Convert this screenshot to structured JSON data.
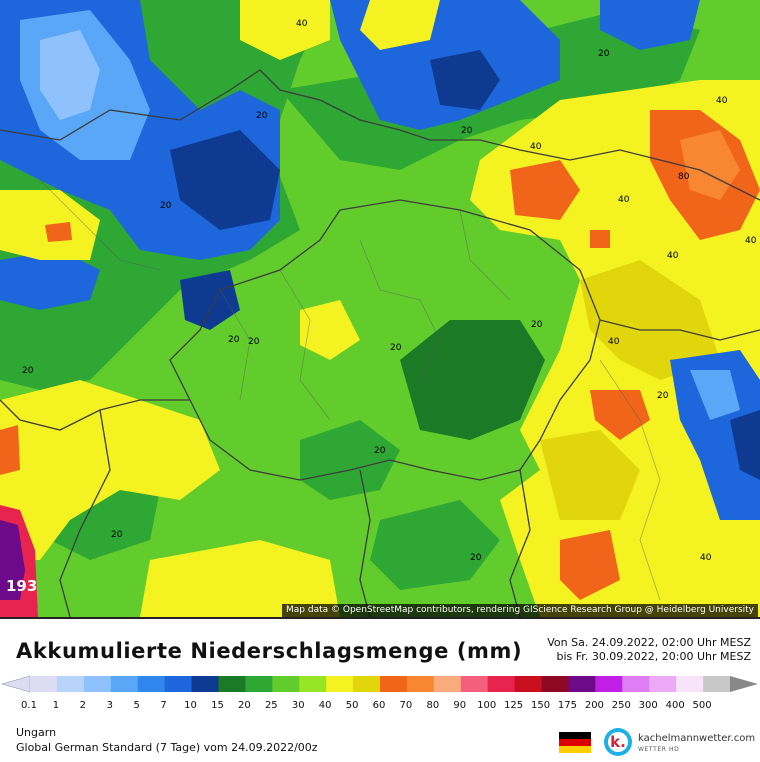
{
  "map": {
    "attribution": "Map data © OpenStreetMap contributors, rendering GIScience Research Group @ Heidelberg University",
    "contour_labels": [
      "40",
      "20",
      "20",
      "40",
      "20",
      "40",
      "20",
      "20",
      "20",
      "40",
      "40",
      "80",
      "40",
      "40",
      "20",
      "20",
      "20",
      "20",
      "20",
      "20",
      "40",
      "20"
    ],
    "max_value_label": "193"
  },
  "header": {
    "title": "Akkumulierte Niederschlagsmenge (mm)",
    "period_from": "Von Sa. 24.09.2022, 02:00 Uhr MESZ",
    "period_to": "bis Fr. 30.09.2022, 20:00 Uhr MESZ"
  },
  "legend": {
    "unit": "mm",
    "values": [
      "0.1",
      "1",
      "2",
      "3",
      "5",
      "7",
      "10",
      "15",
      "20",
      "25",
      "30",
      "40",
      "50",
      "60",
      "70",
      "80",
      "90",
      "100",
      "125",
      "150",
      "175",
      "200",
      "250",
      "300",
      "400",
      "500"
    ],
    "colors": [
      "#dcdcf4",
      "#b9d4fb",
      "#8fc2fc",
      "#5aa7f7",
      "#2f87ee",
      "#1d66dc",
      "#0e3a91",
      "#1c7a27",
      "#2fa734",
      "#63cc2d",
      "#96e626",
      "#f4f221",
      "#e1d50c",
      "#f0651a",
      "#f98732",
      "#fbac7d",
      "#f2607b",
      "#e8244e",
      "#c90e1d",
      "#8e0723",
      "#6c0a8a",
      "#c020e6",
      "#df7ef4",
      "#eca9f8",
      "#f7e4fb",
      "#c8c8c8"
    ]
  },
  "footer": {
    "region": "Ungarn",
    "model": "Global German Standard (7 Tage) vom 24.09.2022/00z",
    "brand": "kachelmannwetter.com",
    "brand_sub": "WETTER HD",
    "logo_letter": "k."
  },
  "colors": {
    "flag_black": "#000000",
    "flag_red": "#dd0000",
    "flag_gold": "#ffce00",
    "border_line": "#3c3c3c"
  }
}
